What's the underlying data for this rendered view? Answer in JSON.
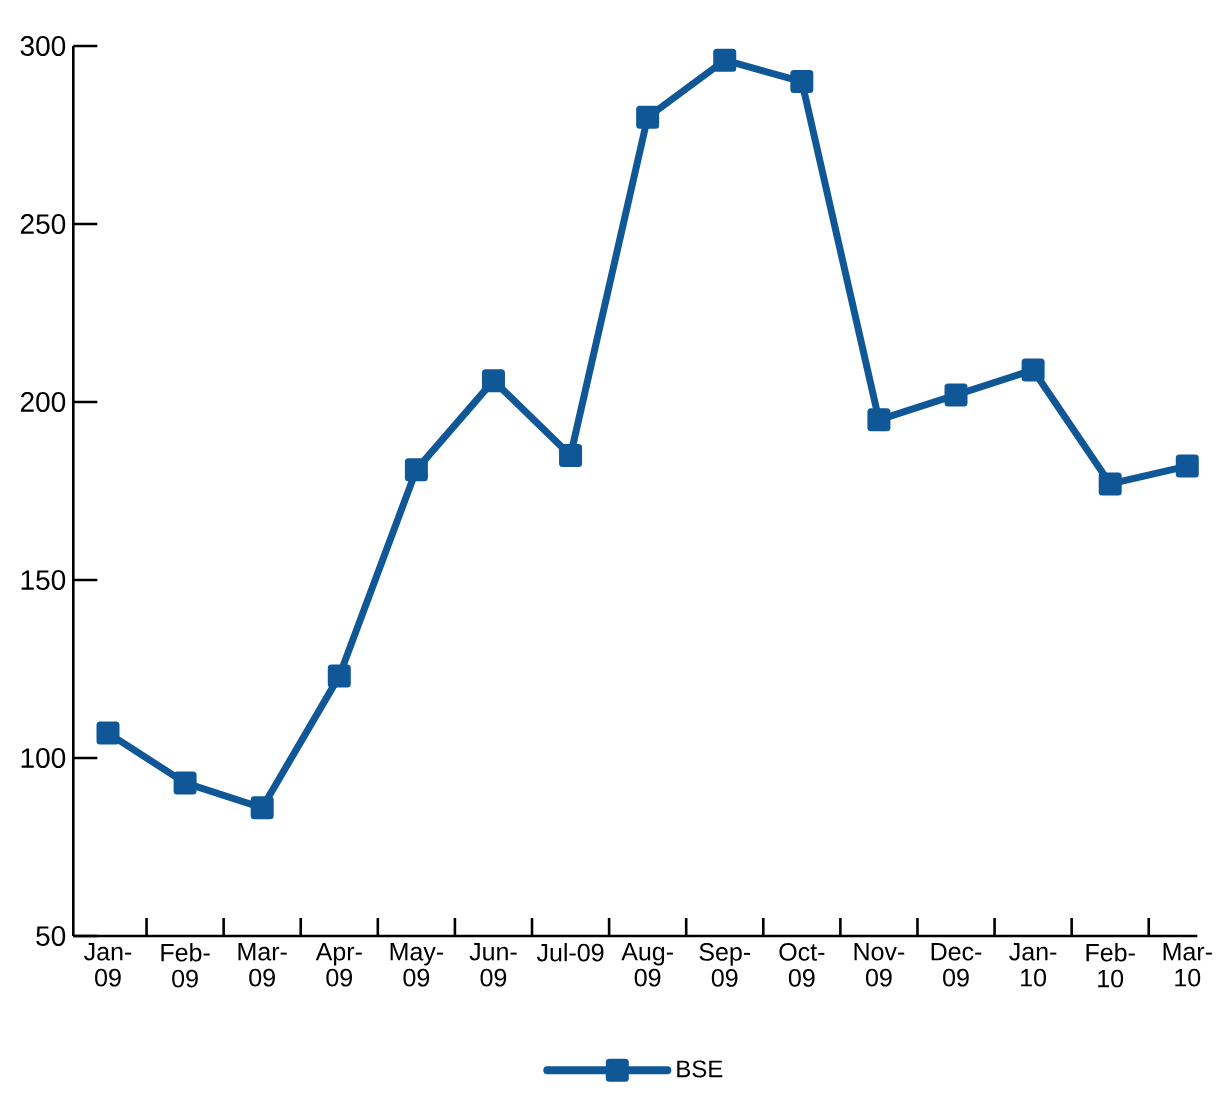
{
  "chart_data": {
    "type": "line",
    "categories": [
      "Jan-09",
      "Feb-09",
      "Mar-09",
      "Apr-09",
      "May-09",
      "Jun-09",
      "Jul-09",
      "Aug-09",
      "Sep-09",
      "Oct-09",
      "Nov-09",
      "Dec-09",
      "Jan-10",
      "Feb-10",
      "Mar-10"
    ],
    "series": [
      {
        "name": "BSE",
        "color": "#0f5796",
        "values": [
          107,
          93,
          86,
          123,
          181,
          206,
          185,
          280,
          296,
          290,
          195,
          202,
          209,
          177,
          182
        ]
      }
    ],
    "ylim": [
      50,
      300
    ],
    "yticks": [
      50,
      100,
      150,
      200,
      250,
      300
    ],
    "grid": false,
    "legend": "bottom",
    "marker": "square",
    "line_style": "solid"
  }
}
